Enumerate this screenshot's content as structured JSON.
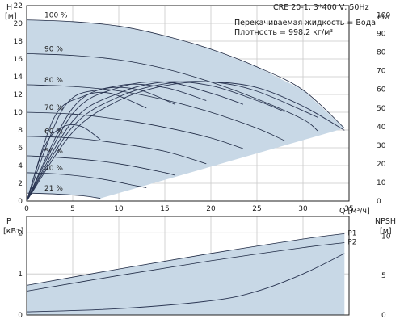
{
  "chart_data": {
    "type": "line",
    "product": "CRE 20-1, 3*400 V, 50Hz",
    "info_lines": [
      "Перекачиваемая жидкость = Вода",
      "Плотность = 998.2 кг/м³"
    ],
    "top_panel": {
      "y_left_label": [
        "H",
        "[м]"
      ],
      "y_right_label": "eta",
      "x_label": "Q [м³/ч]",
      "x_ticks": [
        0,
        5,
        10,
        15,
        20,
        25,
        30,
        35
      ],
      "y_left_ticks": [
        0,
        2,
        4,
        6,
        8,
        10,
        12,
        14,
        16,
        18,
        20,
        22
      ],
      "y_right_ticks": [
        0,
        10,
        20,
        30,
        40,
        50,
        60,
        70,
        80,
        90,
        100
      ],
      "xlim": [
        0,
        35
      ],
      "ylim": [
        0,
        22
      ],
      "y_right_lim": [
        0,
        105
      ],
      "speed_curves": [
        {
          "label": "100 %",
          "points": [
            [
              0,
              20.4
            ],
            [
              5,
              20.2
            ],
            [
              10,
              19.7
            ],
            [
              15,
              18.6
            ],
            [
              20,
              17.1
            ],
            [
              25,
              15.1
            ],
            [
              30,
              12.5
            ],
            [
              34.5,
              8.2
            ]
          ]
        },
        {
          "label": "90 %",
          "points": [
            [
              0,
              16.6
            ],
            [
              5,
              16.4
            ],
            [
              10,
              15.9
            ],
            [
              15,
              14.9
            ],
            [
              20,
              13.4
            ],
            [
              25,
              11.5
            ],
            [
              30,
              9.2
            ],
            [
              31.6,
              7.9
            ]
          ]
        },
        {
          "label": "80 %",
          "points": [
            [
              0,
              13.1
            ],
            [
              5,
              12.9
            ],
            [
              10,
              12.4
            ],
            [
              15,
              11.4
            ],
            [
              20,
              10.0
            ],
            [
              25,
              8.2
            ],
            [
              28,
              6.8
            ]
          ]
        },
        {
          "label": "70 %",
          "points": [
            [
              0,
              10.0
            ],
            [
              5,
              9.8
            ],
            [
              10,
              9.2
            ],
            [
              15,
              8.3
            ],
            [
              20,
              7.1
            ],
            [
              23.5,
              5.9
            ]
          ]
        },
        {
          "label": "60 %",
          "points": [
            [
              0,
              7.3
            ],
            [
              5,
              7.1
            ],
            [
              10,
              6.5
            ],
            [
              15,
              5.6
            ],
            [
              19.5,
              4.2
            ]
          ]
        },
        {
          "label": "50 %",
          "points": [
            [
              0,
              5.1
            ],
            [
              5,
              4.8
            ],
            [
              10,
              4.2
            ],
            [
              15,
              3.2
            ],
            [
              16.1,
              2.9
            ]
          ]
        },
        {
          "label": "40 %",
          "points": [
            [
              0,
              3.2
            ],
            [
              4,
              3.0
            ],
            [
              8,
              2.5
            ],
            [
              12,
              1.7
            ],
            [
              13,
              1.5
            ]
          ]
        },
        {
          "label": "21 %",
          "points": [
            [
              0,
              0.9
            ],
            [
              3,
              0.8
            ],
            [
              6,
              0.6
            ],
            [
              8,
              0.3
            ]
          ]
        }
      ],
      "efficiency_series": [
        {
          "points": [
            [
              0,
              0
            ],
            [
              5,
              37
            ],
            [
              10,
              54
            ],
            [
              15,
              62
            ],
            [
              20,
              64
            ],
            [
              25,
              61
            ],
            [
              30,
              51
            ],
            [
              34.5,
              38
            ]
          ]
        },
        {
          "points": [
            [
              0,
              0
            ],
            [
              5,
              40
            ],
            [
              10,
              56
            ],
            [
              15,
              63
            ],
            [
              20,
              64
            ],
            [
              25,
              59
            ],
            [
              31.6,
              45
            ]
          ]
        },
        {
          "points": [
            [
              0,
              0
            ],
            [
              5,
              43
            ],
            [
              10,
              58
            ],
            [
              15,
              64
            ],
            [
              20,
              62
            ],
            [
              25,
              54
            ],
            [
              28,
              48
            ]
          ]
        },
        {
          "points": [
            [
              0,
              0
            ],
            [
              5,
              47
            ],
            [
              10,
              61
            ],
            [
              15,
              64
            ],
            [
              20,
              58
            ],
            [
              23.5,
              52
            ]
          ]
        },
        {
          "points": [
            [
              0,
              0
            ],
            [
              5,
              50
            ],
            [
              10,
              62
            ],
            [
              15,
              61
            ],
            [
              19.5,
              54
            ]
          ]
        },
        {
          "points": [
            [
              0,
              0
            ],
            [
              4,
              50
            ],
            [
              8,
              60
            ],
            [
              12,
              60
            ],
            [
              16.1,
              52
            ]
          ]
        },
        {
          "points": [
            [
              0,
              0
            ],
            [
              3,
              45
            ],
            [
              6,
              56
            ],
            [
              9,
              58
            ],
            [
              13,
              50
            ]
          ]
        },
        {
          "points": [
            [
              0,
              0
            ],
            [
              2,
              30
            ],
            [
              4,
              40
            ],
            [
              6,
              40
            ],
            [
              8,
              33
            ]
          ]
        }
      ]
    },
    "bottom_panel": {
      "y_left_label": [
        "P",
        "[кВт]"
      ],
      "y_right_label": [
        "NPSH",
        "[м]"
      ],
      "x_ticks": [
        0,
        5,
        10,
        15,
        20,
        25,
        30,
        35
      ],
      "y_left_ticks": [
        0,
        1,
        2
      ],
      "y_right_ticks": [
        0,
        5,
        10
      ],
      "xlim": [
        0,
        35
      ],
      "ylim": [
        0,
        2.4
      ],
      "y_right_lim": [
        0,
        12.5
      ],
      "series": [
        {
          "name": "P1",
          "points": [
            [
              0,
              0.72
            ],
            [
              10,
              1.12
            ],
            [
              20,
              1.5
            ],
            [
              30,
              1.85
            ],
            [
              34.5,
              1.98
            ]
          ]
        },
        {
          "name": "P2",
          "points": [
            [
              0,
              0.58
            ],
            [
              10,
              0.96
            ],
            [
              20,
              1.32
            ],
            [
              30,
              1.64
            ],
            [
              34.5,
              1.76
            ]
          ]
        }
      ],
      "npsh_curve": {
        "points": [
          [
            0,
            0.4
          ],
          [
            10,
            0.8
          ],
          [
            20,
            1.8
          ],
          [
            25,
            3.0
          ],
          [
            30,
            5.2
          ],
          [
            34.5,
            7.8
          ]
        ]
      }
    }
  }
}
